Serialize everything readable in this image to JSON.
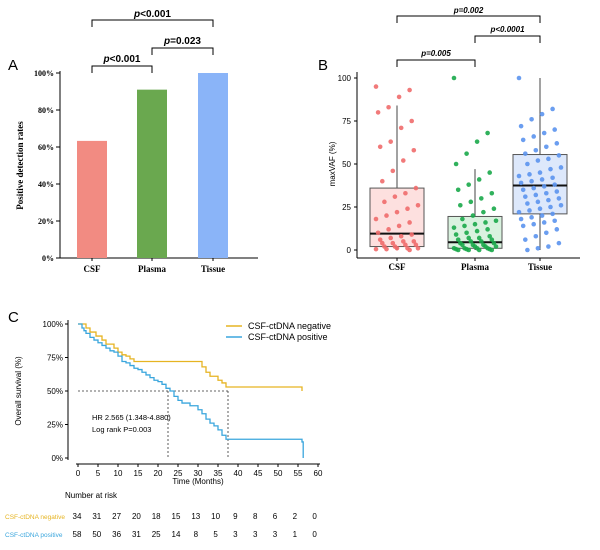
{
  "chart_data": [
    {
      "panel": "A",
      "type": "bar",
      "ylabel": "Positive detection rates",
      "ylim": [
        0,
        100
      ],
      "yticks": [
        "0%",
        "20%",
        "40%",
        "60%",
        "80%",
        "100%"
      ],
      "ytick_values": [
        0,
        20,
        40,
        60,
        80,
        100
      ],
      "categories": [
        "CSF",
        "Plasma",
        "Tissue"
      ],
      "values": [
        63.3,
        91.0,
        100.0
      ],
      "colors": [
        "#f28b82",
        "#6aa84f",
        "#8ab4f8"
      ],
      "comparisons": [
        {
          "from": "CSF",
          "to": "Plasma",
          "p_prefix": "p",
          "p_rest": "<0.001"
        },
        {
          "from": "Plasma",
          "to": "Tissue",
          "p_prefix": "p",
          "p_rest": "=0.023"
        },
        {
          "from": "CSF",
          "to": "Tissue",
          "p_prefix": "p",
          "p_rest": "<0.001"
        }
      ]
    },
    {
      "panel": "B",
      "type": "box",
      "ylabel": "maxVAF (%)",
      "ylim": [
        0,
        100
      ],
      "yticks": [
        "0",
        "25",
        "50",
        "75",
        "100"
      ],
      "ytick_values": [
        0,
        25,
        50,
        75,
        100
      ],
      "categories": [
        "CSF",
        "Plasma",
        "Tissue"
      ],
      "boxes": [
        {
          "name": "CSF",
          "q1": 2,
          "median": 9.5,
          "q3": 36,
          "whisker_low": 0,
          "whisker_high": 84,
          "fill": "#fde0df",
          "point": "#ef6b6b"
        },
        {
          "name": "Plasma",
          "q1": 1,
          "median": 4.5,
          "q3": 19.5,
          "whisker_low": 0,
          "whisker_high": 47,
          "fill": "#d9f2df",
          "point": "#1aa84a"
        },
        {
          "name": "Tissue",
          "q1": 21,
          "median": 37.5,
          "q3": 55.5,
          "whisker_low": 0,
          "whisker_high": 100,
          "fill": "#dde8fb",
          "point": "#5b94ee"
        }
      ],
      "points": {
        "CSF": [
          95,
          93,
          89,
          83,
          80,
          75,
          71,
          63,
          60,
          58,
          52,
          46,
          40,
          36,
          33,
          31,
          28,
          26,
          24,
          22,
          20,
          18,
          16,
          14,
          12,
          10,
          9,
          8,
          7,
          6,
          5,
          5,
          4,
          4,
          3,
          3,
          2,
          2,
          1,
          1,
          1,
          0.5,
          0.5,
          0
        ],
        "Plasma": [
          100,
          68,
          63,
          56,
          50,
          45,
          41,
          38,
          35,
          33,
          30,
          28,
          26,
          24,
          22,
          20,
          18,
          17,
          16,
          15,
          14,
          13,
          12,
          11,
          10,
          9,
          8,
          7,
          7,
          6,
          6,
          5,
          5,
          4,
          4,
          3,
          3,
          3,
          2,
          2,
          2,
          1,
          1,
          1,
          1,
          0.5,
          0.5,
          0.5,
          0,
          0,
          0,
          0
        ],
        "Tissue": [
          100,
          82,
          79,
          76,
          72,
          70,
          68,
          66,
          64,
          62,
          60,
          58,
          56,
          55,
          53,
          52,
          50,
          48,
          47,
          45,
          44,
          43,
          42,
          41,
          40,
          39,
          38,
          37,
          36,
          35,
          34,
          33,
          32,
          31,
          30,
          29,
          28,
          27,
          26,
          25,
          24,
          23,
          22,
          21,
          20,
          19,
          18,
          17,
          16,
          15,
          14,
          12,
          10,
          8,
          6,
          4,
          2,
          1,
          0
        ]
      },
      "comparisons": [
        {
          "from": "CSF",
          "to": "Plasma",
          "label": "p=0.005"
        },
        {
          "from": "Plasma",
          "to": "Tissue",
          "label": "p<0.0001"
        },
        {
          "from": "CSF",
          "to": "Tissue",
          "label": "p=0.002"
        }
      ]
    },
    {
      "panel": "C",
      "type": "line",
      "subtype": "kaplan-meier",
      "ylabel": "Overall survival (%)",
      "xlabel": "Time (Months)",
      "xlim": [
        0,
        60
      ],
      "ylim": [
        0,
        100
      ],
      "xticks": [
        "0",
        "5",
        "10",
        "15",
        "20",
        "25",
        "30",
        "35",
        "40",
        "45",
        "50",
        "55",
        "60"
      ],
      "xtick_values": [
        0,
        5,
        10,
        15,
        20,
        25,
        30,
        35,
        40,
        45,
        50,
        55,
        60
      ],
      "yticks": [
        "0%",
        "25%",
        "50%",
        "75%",
        "100%"
      ],
      "ytick_values": [
        0,
        25,
        50,
        75,
        100
      ],
      "series": [
        {
          "name": "CSF-ctDNA negative",
          "color": "#e6b422",
          "x": [
            0,
            2,
            3,
            4.5,
            6,
            7,
            9,
            10,
            11,
            12,
            13,
            14,
            15,
            17,
            30,
            31,
            32,
            33,
            35,
            36,
            37,
            56
          ],
          "y": [
            100,
            97,
            94,
            91,
            88,
            85,
            82,
            79,
            77,
            76,
            74,
            72,
            72,
            72,
            72,
            68,
            64,
            61,
            58,
            56,
            53,
            50
          ]
        },
        {
          "name": "CSF-ctDNA positive",
          "color": "#3aa6dd",
          "x": [
            0,
            1,
            1.5,
            2,
            3,
            4,
            5,
            6,
            7,
            8,
            9,
            10,
            11,
            12,
            13,
            14,
            15,
            16,
            17,
            18,
            19,
            20,
            21,
            22,
            23,
            24,
            25,
            26,
            27,
            28,
            30,
            31,
            32,
            33,
            34,
            35,
            36,
            37,
            56,
            56.3
          ],
          "y": [
            100,
            97,
            95,
            93,
            90,
            88,
            86,
            84,
            82,
            80,
            79,
            76,
            72,
            71,
            69,
            67,
            66,
            64,
            62,
            60,
            58,
            57,
            55,
            52,
            50,
            46,
            43,
            41,
            41,
            39,
            36,
            33,
            29,
            26,
            24,
            21,
            17,
            14,
            12,
            0
          ]
        }
      ],
      "median_lines": [
        22.5,
        37.5
      ],
      "annotations": [
        "HR 2.565 (1.348-4.880)",
        "Log rank P=0.003"
      ],
      "risk_table": {
        "title": "Number at risk",
        "rows": [
          {
            "label": "CSF-ctDNA negative",
            "color": "#e6b422",
            "values": [
              "34",
              "31",
              "27",
              "20",
              "18",
              "15",
              "13",
              "10",
              "9",
              "8",
              "6",
              "2",
              "0"
            ]
          },
          {
            "label": "CSF-ctDNA positive",
            "color": "#3aa6dd",
            "values": [
              "58",
              "50",
              "36",
              "31",
              "25",
              "14",
              "8",
              "5",
              "3",
              "3",
              "3",
              "1",
              "0"
            ]
          }
        ]
      }
    }
  ]
}
